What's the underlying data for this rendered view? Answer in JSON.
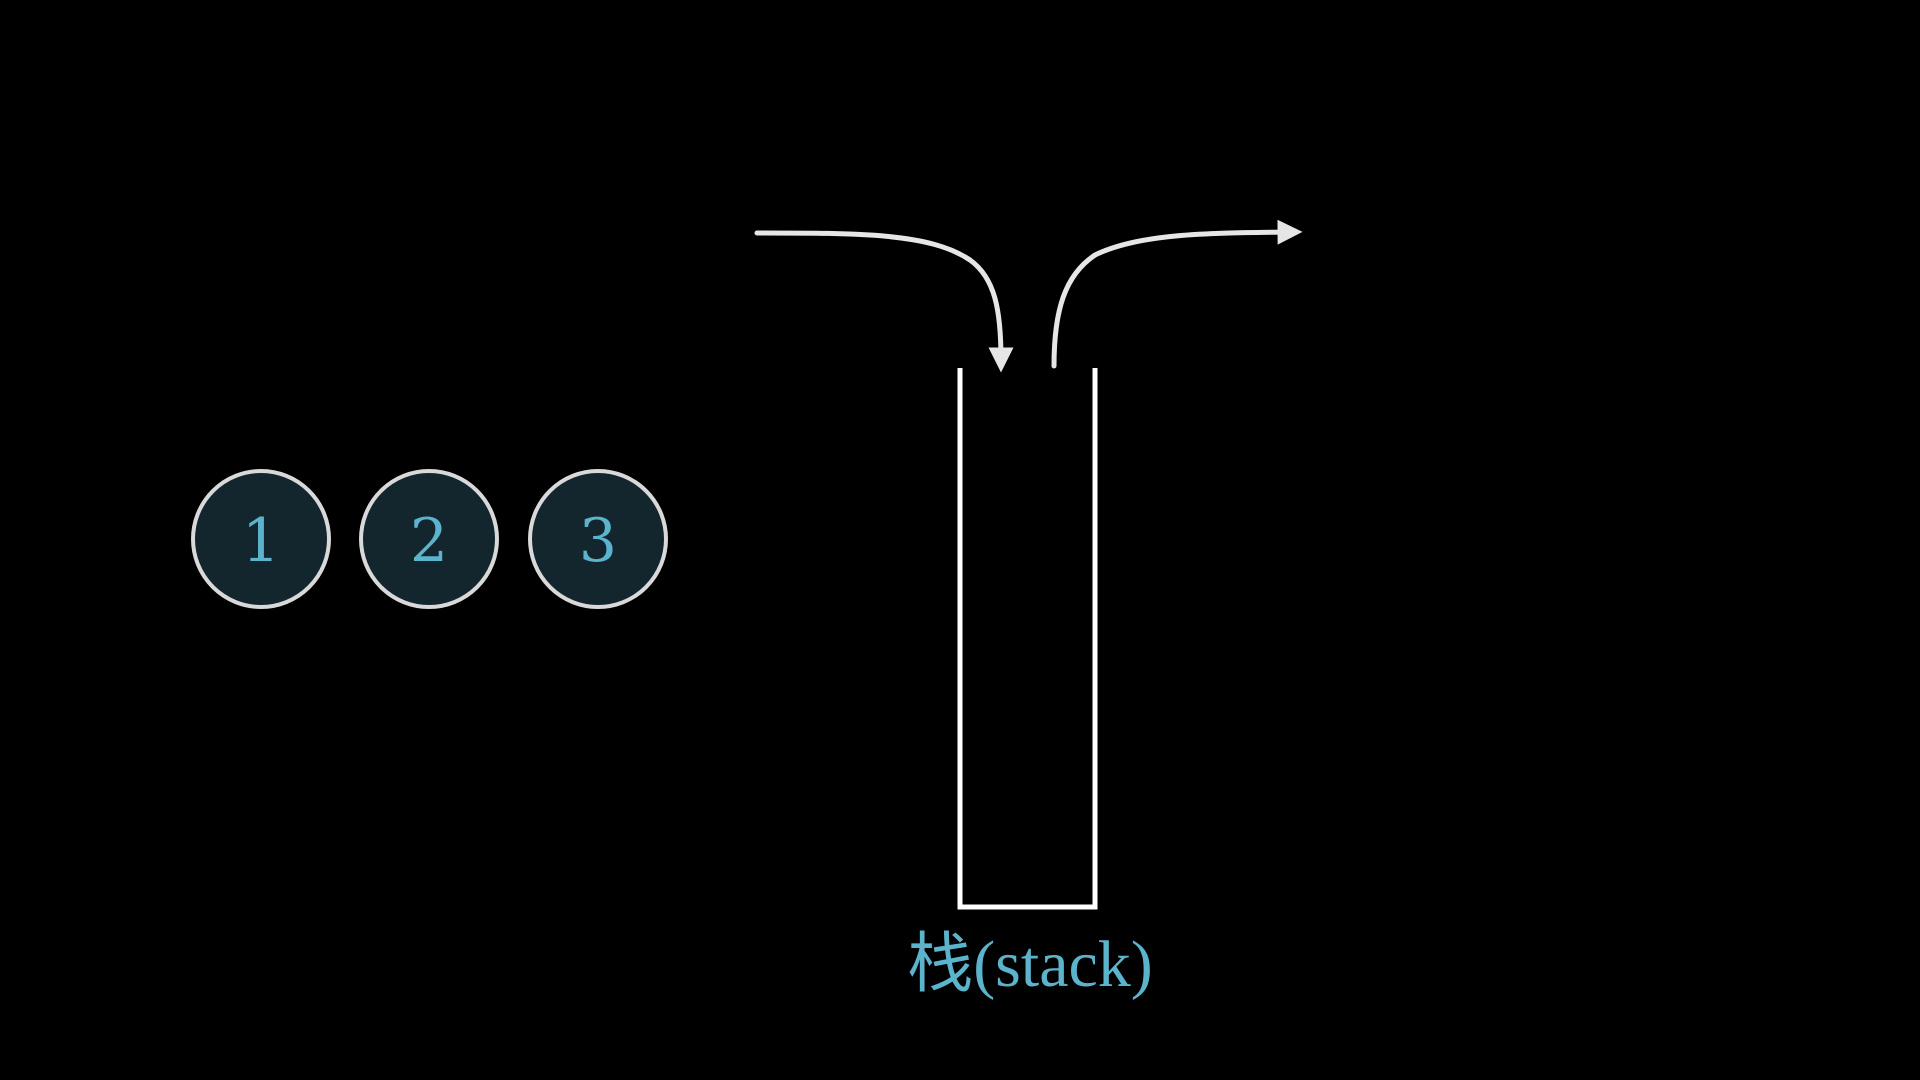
{
  "elements": [
    {
      "label": "1"
    },
    {
      "label": "2"
    },
    {
      "label": "3"
    }
  ],
  "stack": {
    "label": "栈(stack)"
  },
  "colors": {
    "background": "#000000",
    "node_fill": "#13262d",
    "node_stroke": "#d9d9d9",
    "accent_text": "#5bb3cc",
    "line": "#e6e6e6"
  },
  "arrows": [
    {
      "name": "push-arrow",
      "direction": "in"
    },
    {
      "name": "pop-arrow",
      "direction": "out"
    }
  ]
}
